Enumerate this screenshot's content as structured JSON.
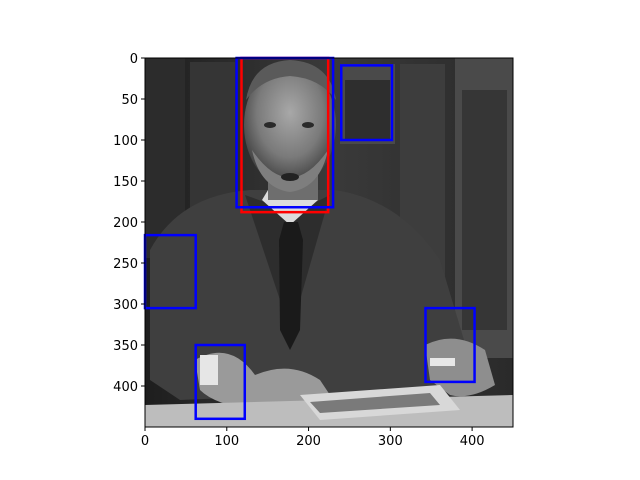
{
  "chart_data": {
    "type": "image-with-bounding-boxes",
    "image_extent": {
      "x": [
        0,
        450
      ],
      "y": [
        0,
        450
      ]
    },
    "x_ticks": [
      0,
      100,
      200,
      300,
      400
    ],
    "y_ticks": [
      0,
      50,
      100,
      150,
      200,
      250,
      300,
      350,
      400
    ],
    "grid": false,
    "legend": "none",
    "boxes": [
      {
        "color": "#ff0000",
        "x0": 118,
        "y0": 0,
        "x1": 224,
        "y1": 188
      },
      {
        "color": "#0000ff",
        "x0": 112,
        "y0": 0,
        "x1": 230,
        "y1": 182
      },
      {
        "color": "#0000ff",
        "x0": 240,
        "y0": 9,
        "x1": 302,
        "y1": 100
      },
      {
        "color": "#0000ff",
        "x0": 0,
        "y0": 216,
        "x1": 62,
        "y1": 305
      },
      {
        "color": "#0000ff",
        "x0": 62,
        "y0": 350,
        "x1": 122,
        "y1": 440
      },
      {
        "color": "#0000ff",
        "x0": 343,
        "y0": 305,
        "x1": 403,
        "y1": 395
      }
    ]
  },
  "photo": {
    "subject": "black-and-white portrait of a seated man in a suit gesturing with both hands"
  }
}
